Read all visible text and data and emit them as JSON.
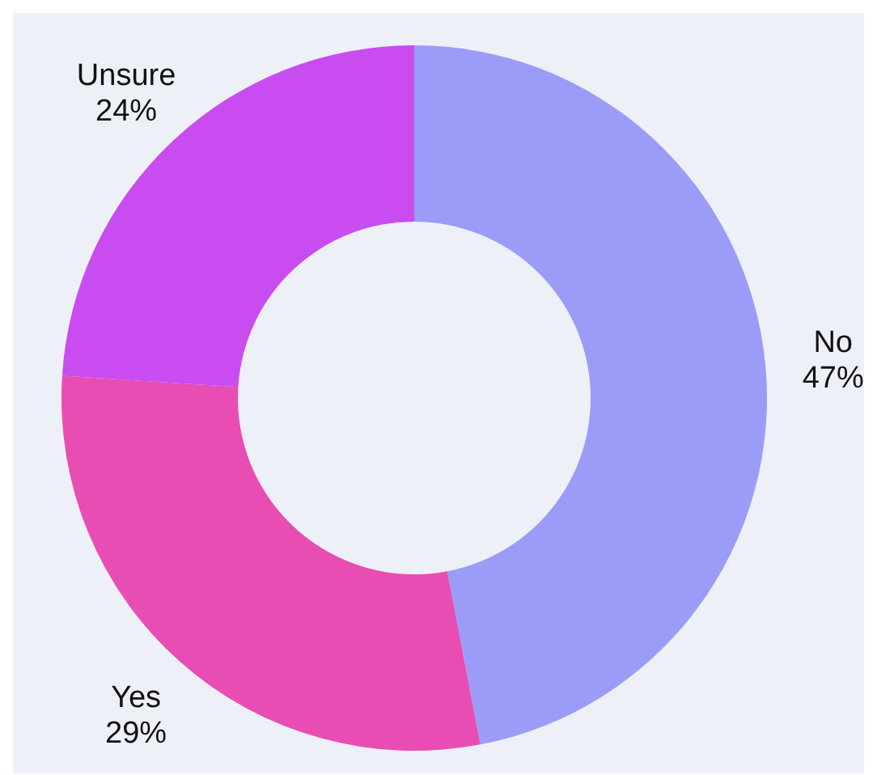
{
  "chart_data": {
    "type": "donut",
    "categories": [
      "No",
      "Yes",
      "Unsure"
    ],
    "values": [
      47,
      29,
      24
    ],
    "colors": [
      "#9b9cf8",
      "#e84db3",
      "#c84cf0"
    ],
    "value_labels": [
      "47%",
      "29%",
      "24%"
    ]
  }
}
